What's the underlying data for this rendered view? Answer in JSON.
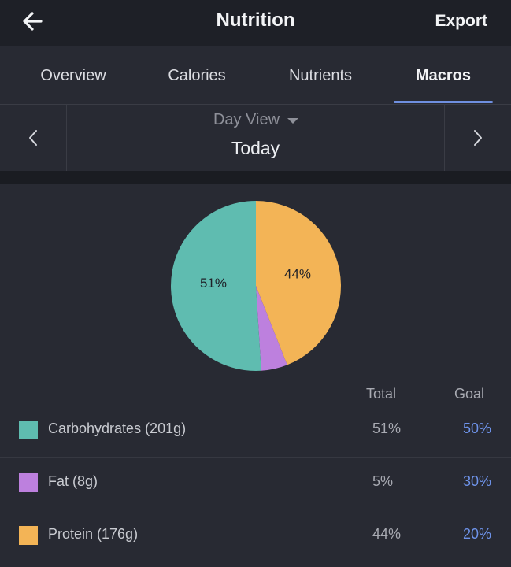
{
  "header": {
    "title": "Nutrition",
    "export_label": "Export"
  },
  "tabs": [
    {
      "label": "Overview",
      "active": false
    },
    {
      "label": "Calories",
      "active": false
    },
    {
      "label": "Nutrients",
      "active": false
    },
    {
      "label": "Macros",
      "active": true
    }
  ],
  "date_nav": {
    "view_label": "Day View",
    "current": "Today"
  },
  "colors": {
    "carbs": "#5fbcb0",
    "fat": "#bd80de",
    "protein": "#f3b456",
    "accent": "#6f8fe0"
  },
  "table": {
    "total_header": "Total",
    "goal_header": "Goal"
  },
  "macros": [
    {
      "label": "Carbohydrates (201g)",
      "total": "51%",
      "goal": "50%",
      "color": "#5fbcb0"
    },
    {
      "label": "Fat (8g)",
      "total": "5%",
      "goal": "30%",
      "color": "#bd80de"
    },
    {
      "label": "Protein (176g)",
      "total": "44%",
      "goal": "20%",
      "color": "#f3b456"
    }
  ],
  "chart_data": {
    "type": "pie",
    "slices": [
      {
        "name": "Protein",
        "value": 44,
        "label": "44%",
        "color": "#f3b456"
      },
      {
        "name": "Fat",
        "value": 5,
        "label": "",
        "color": "#bd80de"
      },
      {
        "name": "Carbohydrates",
        "value": 51,
        "label": "51%",
        "color": "#5fbcb0"
      }
    ]
  }
}
